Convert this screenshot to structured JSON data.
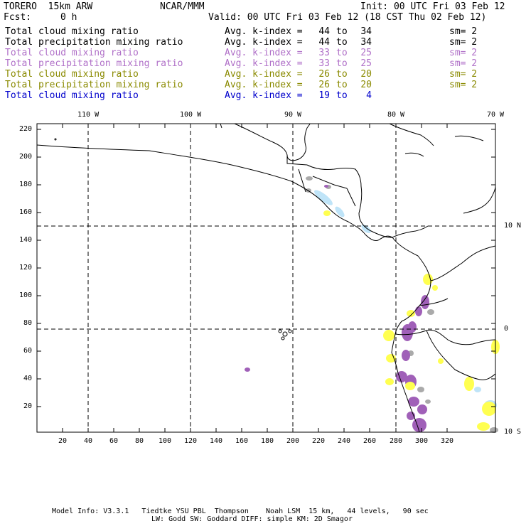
{
  "header": {
    "model": "TORERO  15km ARW",
    "org": "NCAR/MMM",
    "init": "Init: 00 UTC Fri 03 Feb 12",
    "fcst_label": "Fcst:",
    "fcst_value": "0 h",
    "valid": "Valid: 00 UTC Fri 03 Feb 12 (18 CST Thu 02 Feb 12)"
  },
  "legend": [
    {
      "field": "Total cloud mixing ratio",
      "kidx": "Avg. k-index =",
      "lo": "44",
      "to": "to",
      "hi": "34",
      "sm": "sm= 2",
      "color": "#000000"
    },
    {
      "field": "Total precipitation mixing ratio",
      "kidx": "Avg. k-index =",
      "lo": "44",
      "to": "to",
      "hi": "34",
      "sm": "sm= 2",
      "color": "#000000"
    },
    {
      "field": "Total cloud mixing ratio",
      "kidx": "Avg. k-index =",
      "lo": "33",
      "to": "to",
      "hi": "25",
      "sm": "sm= 2",
      "color": "#b070c8"
    },
    {
      "field": "Total precipitation mixing ratio",
      "kidx": "Avg. k-index =",
      "lo": "33",
      "to": "to",
      "hi": "25",
      "sm": "sm= 2",
      "color": "#b070c8"
    },
    {
      "field": "Total cloud mixing ratio",
      "kidx": "Avg. k-index =",
      "lo": "26",
      "to": "to",
      "hi": "20",
      "sm": "sm= 2",
      "color": "#8a8a00"
    },
    {
      "field": "Total precipitation mixing ratio",
      "kidx": "Avg. k-index =",
      "lo": "26",
      "to": "to",
      "hi": "20",
      "sm": "sm= 2",
      "color": "#8a8a00"
    },
    {
      "field": "Total cloud mixing ratio",
      "kidx": "Avg. k-index =",
      "lo": "19",
      "to": "to",
      "hi": "4",
      "sm": "",
      "color": "#0000cc"
    }
  ],
  "map": {
    "lon_labels": [
      "110 W",
      "100 W",
      "90 W",
      "80 W",
      "70 W"
    ],
    "lat_labels": [
      "10 N",
      "0",
      "10 S"
    ],
    "y_ticks": [
      "220",
      "200",
      "180",
      "160",
      "140",
      "120",
      "100",
      "80",
      "60",
      "40",
      "20"
    ],
    "x_ticks": [
      "20",
      "40",
      "60",
      "80",
      "100",
      "120",
      "140",
      "160",
      "180",
      "200",
      "220",
      "240",
      "260",
      "280",
      "300",
      "320"
    ],
    "colors": {
      "purple": "#a060b8",
      "yellow": "#ffff50",
      "gray": "#aaaaaa",
      "lightblue": "#bfe4f8"
    }
  },
  "footer": {
    "line1": "Model Info: V3.3.1   Tiedtke YSU PBL  Thompson    Noah LSM  15 km,   44 levels,   90 sec",
    "line2": "LW: Godd SW: Goddard DIFF: simple KM: 2D Smagor"
  }
}
